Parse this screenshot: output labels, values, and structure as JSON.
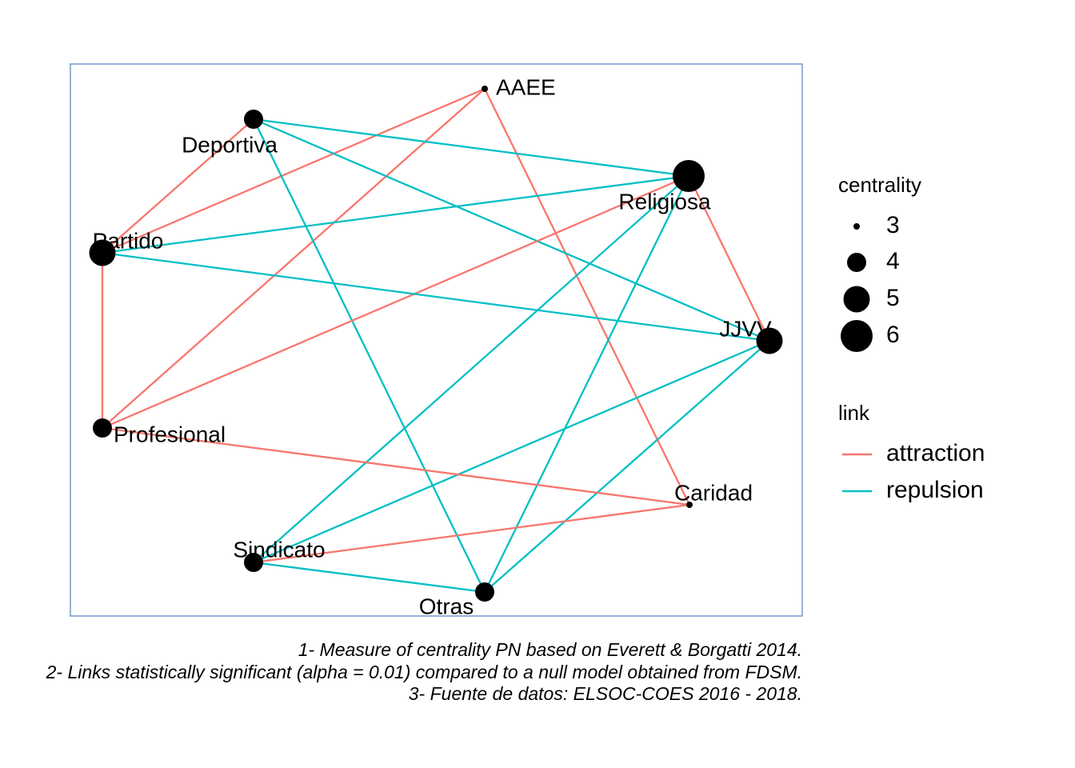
{
  "nodes": [
    {
      "id": "AAEE",
      "label": "AAEE",
      "centrality": 3
    },
    {
      "id": "Deportiva",
      "label": "Deportiva",
      "centrality": 4
    },
    {
      "id": "Religiosa",
      "label": "Religiosa",
      "centrality": 6
    },
    {
      "id": "Partido",
      "label": "Partido",
      "centrality": 5
    },
    {
      "id": "JJVV",
      "label": "JJVV",
      "centrality": 5
    },
    {
      "id": "Profesional",
      "label": "Profesional",
      "centrality": 4
    },
    {
      "id": "Caridad",
      "label": "Caridad",
      "centrality": 3
    },
    {
      "id": "Sindicato",
      "label": "Sindicato",
      "centrality": 4
    },
    {
      "id": "Otras",
      "label": "Otras",
      "centrality": 4
    }
  ],
  "edges": [
    {
      "source": "AAEE",
      "target": "Partido",
      "link": "attraction"
    },
    {
      "source": "AAEE",
      "target": "Profesional",
      "link": "attraction"
    },
    {
      "source": "AAEE",
      "target": "Caridad",
      "link": "attraction"
    },
    {
      "source": "Deportiva",
      "target": "Partido",
      "link": "attraction"
    },
    {
      "source": "Deportiva",
      "target": "Religiosa",
      "link": "repulsion"
    },
    {
      "source": "Deportiva",
      "target": "JJVV",
      "link": "repulsion"
    },
    {
      "source": "Deportiva",
      "target": "Otras",
      "link": "repulsion"
    },
    {
      "source": "Religiosa",
      "target": "Partido",
      "link": "repulsion"
    },
    {
      "source": "Religiosa",
      "target": "Profesional",
      "link": "attraction"
    },
    {
      "source": "Religiosa",
      "target": "JJVV",
      "link": "attraction"
    },
    {
      "source": "Religiosa",
      "target": "Sindicato",
      "link": "repulsion"
    },
    {
      "source": "Religiosa",
      "target": "Otras",
      "link": "repulsion"
    },
    {
      "source": "Partido",
      "target": "JJVV",
      "link": "repulsion"
    },
    {
      "source": "Partido",
      "target": "Profesional",
      "link": "attraction"
    },
    {
      "source": "JJVV",
      "target": "Sindicato",
      "link": "repulsion"
    },
    {
      "source": "JJVV",
      "target": "Otras",
      "link": "repulsion"
    },
    {
      "source": "Profesional",
      "target": "Caridad",
      "link": "attraction"
    },
    {
      "source": "Caridad",
      "target": "Sindicato",
      "link": "attraction"
    },
    {
      "source": "Sindicato",
      "target": "Otras",
      "link": "repulsion"
    }
  ],
  "colors": {
    "attraction": "#F8766D",
    "repulsion": "#00BFC4",
    "node": "#000000",
    "panel_border": "#4F81BD"
  },
  "legend": {
    "centrality_title": "centrality",
    "centrality_values": [
      "3",
      "4",
      "5",
      "6"
    ],
    "link_title": "link",
    "link_values": [
      "attraction",
      "repulsion"
    ]
  },
  "caption": {
    "line1": "1- Measure of centrality PN based on Everett & Borgatti 2014.",
    "line2": "2- Links statistically significant (alpha = 0.01) compared to a null model obtained from FDSM.",
    "line3": "3- Fuente de datos: ELSOC-COES 2016 - 2018."
  }
}
